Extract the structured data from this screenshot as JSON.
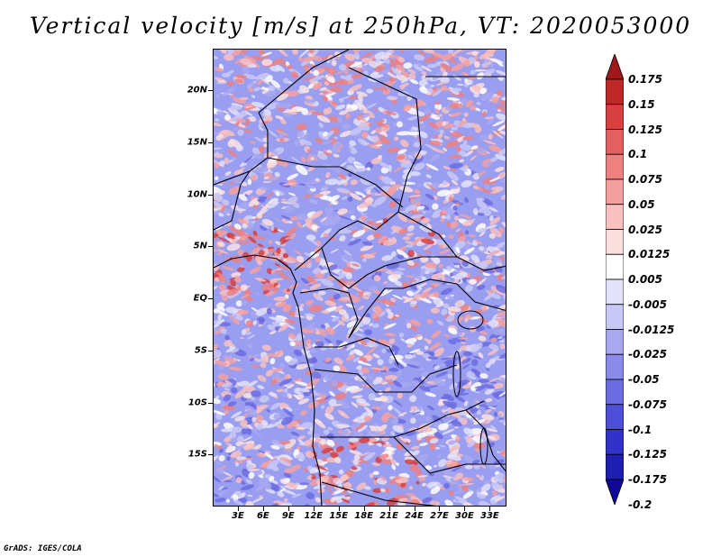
{
  "title": "Vertical velocity [m/s] at 250hPa, VT: 2020053000",
  "footer": "GrADS: IGES/COLA",
  "map": {
    "variable": "Vertical velocity",
    "units": "m/s",
    "level": "250hPa",
    "lon_range": [
      0,
      35
    ],
    "lat_range": [
      -20,
      24
    ],
    "lat_ticks": [
      {
        "value": 20,
        "label": "20N"
      },
      {
        "value": 15,
        "label": "15N"
      },
      {
        "value": 10,
        "label": "10N"
      },
      {
        "value": 5,
        "label": "5N"
      },
      {
        "value": 0,
        "label": "EQ"
      },
      {
        "value": -5,
        "label": "5S"
      },
      {
        "value": -10,
        "label": "10S"
      },
      {
        "value": -15,
        "label": "15S"
      }
    ],
    "lon_ticks": [
      {
        "value": 3,
        "label": "3E"
      },
      {
        "value": 6,
        "label": "6E"
      },
      {
        "value": 9,
        "label": "9E"
      },
      {
        "value": 12,
        "label": "12E"
      },
      {
        "value": 15,
        "label": "15E"
      },
      {
        "value": 18,
        "label": "18E"
      },
      {
        "value": 21,
        "label": "21E"
      },
      {
        "value": 24,
        "label": "24E"
      },
      {
        "value": 27,
        "label": "27E"
      },
      {
        "value": 30,
        "label": "30E"
      },
      {
        "value": 33,
        "label": "33E"
      }
    ],
    "background_color": "#9a9ef0"
  },
  "colorbar": {
    "labels": [
      "0.175",
      "0.15",
      "0.125",
      "0.1",
      "0.075",
      "0.05",
      "0.025",
      "0.0125",
      "0.005",
      "-0.005",
      "-0.0125",
      "-0.025",
      "-0.05",
      "-0.075",
      "-0.1",
      "-0.125",
      "-0.175",
      "-0.2"
    ],
    "colors": [
      "#a01818",
      "#c02828",
      "#d84040",
      "#e46060",
      "#ee8080",
      "#f4a0a0",
      "#f8c0c0",
      "#fce0e0",
      "#ffffff",
      "#e2e2fa",
      "#c8c8f6",
      "#a8a8f0",
      "#8a8aea",
      "#6c6ce2",
      "#4e4ed8",
      "#3232c8",
      "#1e1eb0",
      "#100898"
    ]
  }
}
